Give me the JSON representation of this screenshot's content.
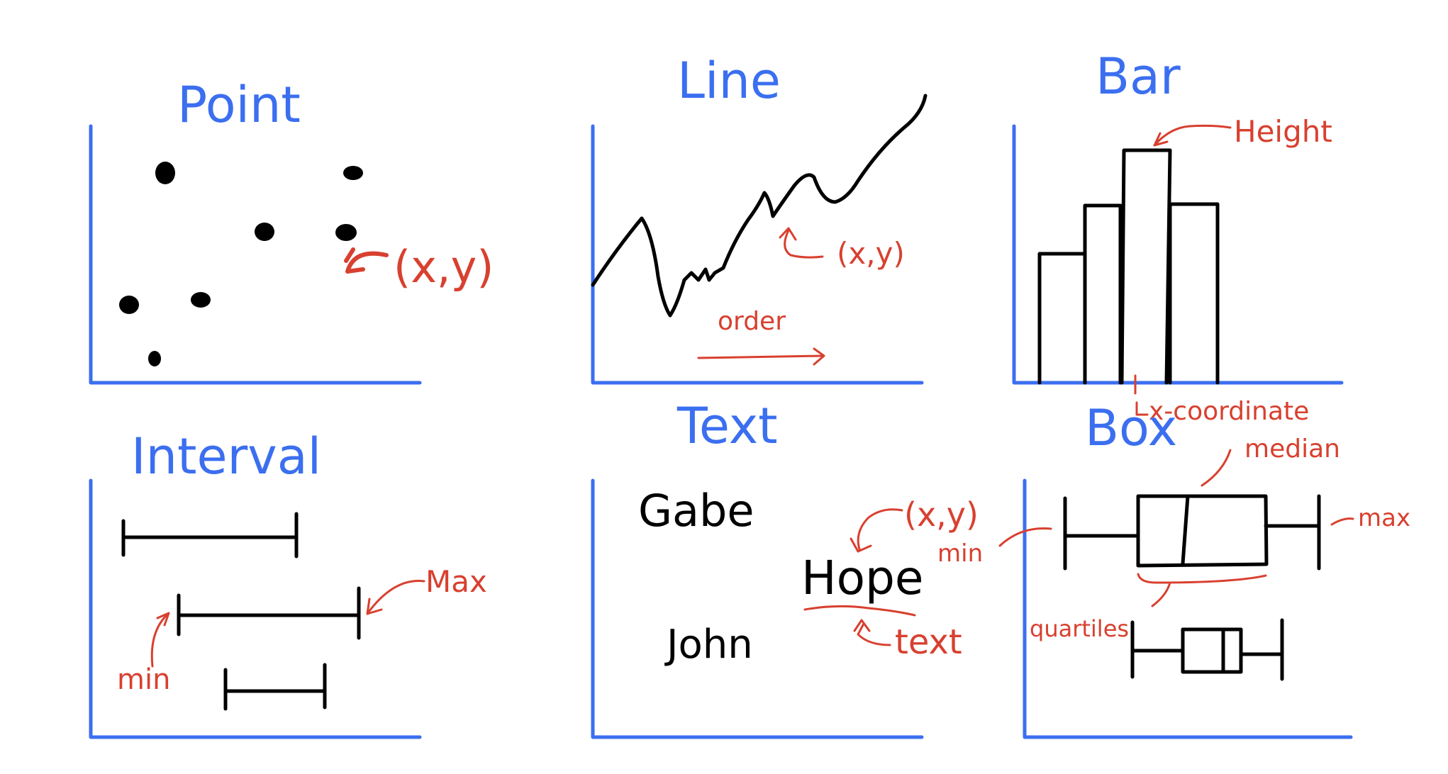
{
  "colors": {
    "axis": "#3b6ff0",
    "ink": "#000000",
    "annotation": "#d8402f",
    "background": "#ffffff"
  },
  "panels": {
    "point": {
      "title": "Point",
      "annotation": "(x,y)"
    },
    "line": {
      "title": "Line",
      "point_label": "(x,y)",
      "order_label": "order"
    },
    "bar": {
      "title": "Bar",
      "height_label": "Height",
      "x_label": "x-coordinate"
    },
    "interval": {
      "title": "Interval",
      "max_label": "Max",
      "min_label": "min"
    },
    "text": {
      "title": "Text",
      "words": [
        "Gabe",
        "Hope",
        "John"
      ],
      "point_label": "(x,y)",
      "text_label": "text"
    },
    "box": {
      "title": "Box",
      "median_label": "median",
      "min_label": "min",
      "max_label": "max",
      "quartiles_label": "quartiles"
    }
  }
}
